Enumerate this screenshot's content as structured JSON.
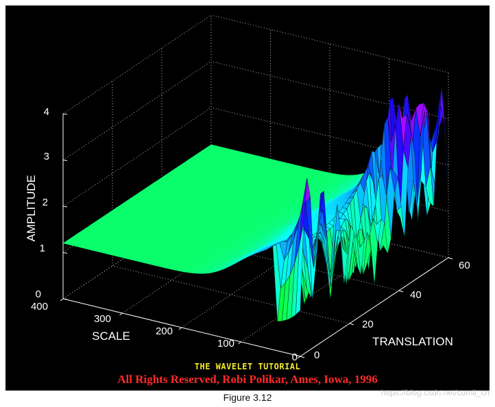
{
  "chart_data": {
    "type": "surface",
    "title": "",
    "zlabel": "AMPLITUDE",
    "xlabel": "SCALE",
    "ylabel": "TRANSLATION",
    "zlim": [
      0,
      4
    ],
    "xlim": [
      0,
      400
    ],
    "ylim": [
      0,
      60
    ],
    "z_ticks": [
      "0",
      "1",
      "2",
      "3",
      "4"
    ],
    "x_ticks": [
      "0",
      "100",
      "200",
      "300",
      "400"
    ],
    "y_ticks": [
      "0",
      "20",
      "40",
      "60"
    ],
    "grid": true,
    "colormap": "hsv",
    "description_points": [
      {
        "scale": 400,
        "translation": 0,
        "amplitude": 1.2
      },
      {
        "scale": 400,
        "translation": 60,
        "amplitude": 1.2
      },
      {
        "scale": 25,
        "translation": 10,
        "amplitude": 3.6
      },
      {
        "scale": 25,
        "translation": 45,
        "amplitude": 3.7
      },
      {
        "scale": 5,
        "translation": 5,
        "amplitude": 0.1
      }
    ]
  },
  "credits": {
    "line1": "THE WAVELET TUTORIAL",
    "line2": "All Rights Reserved, Robi Polikar, Ames, Iowa, 1996"
  },
  "caption": "Figure 3.12",
  "watermark": "https://blog.csdn.net/comli_cn"
}
